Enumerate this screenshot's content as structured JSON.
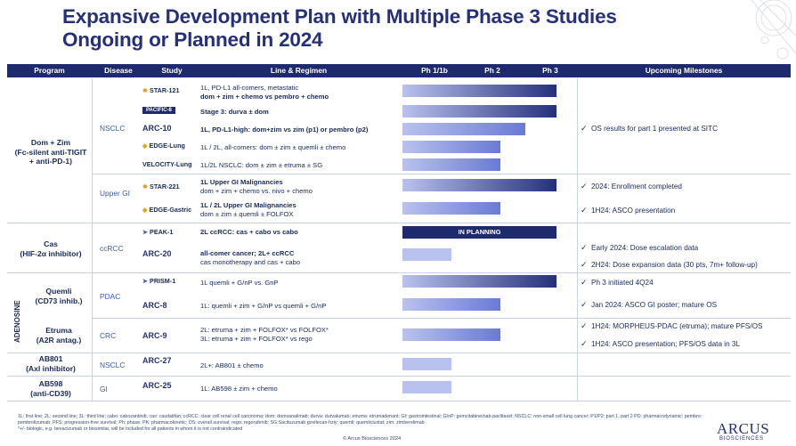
{
  "title": {
    "line1": "Expansive Development Plan with Multiple Phase 3 Studies",
    "line2": "Ongoing or Planned in 2024"
  },
  "header": [
    "Program",
    "Disease",
    "Study",
    "Line & Regimen",
    "Ph 1/1b",
    "Ph 2",
    "Ph 3",
    "Upcoming Milestones"
  ],
  "programs": {
    "domzim": {
      "l1": "Dom + Zim",
      "l2": "(Fc-silent anti-TIGIT",
      "l3": "+ anti-PD-1)"
    },
    "cas": {
      "l1": "Cas",
      "l2": "(HIF-2α inhibitor)"
    },
    "quemli": {
      "l1": "Quemli",
      "l2": "(CD73 inhib.)"
    },
    "etruma": {
      "l1": "Etruma",
      "l2": "(A2R antag.)"
    },
    "ab801": {
      "l1": "AB801",
      "l2": "(Axl inhibitor)"
    },
    "ab598": {
      "l1": "AB598",
      "l2": "(anti-CD39)"
    },
    "adenosine": "ADENOSINE"
  },
  "diseases": {
    "nsclc": "NSCLC",
    "uppergi": "Upper GI",
    "ccrcc": "ccRCC",
    "pdac": "PDAC",
    "crc": "CRC",
    "nsclc2": "NSCLC",
    "gi": "GI"
  },
  "studies": {
    "s1": "STAR-121",
    "s2": "PACIFIC-8",
    "s3": "ARC-10",
    "s4": "EDGE-Lung",
    "s5": "VELOCITY-Lung",
    "s6": "STAR-221",
    "s7": "EDGE-Gastric",
    "s8": "PEAK-1",
    "s9": "ARC-20",
    "s10": "PRISM-1",
    "s11": "ARC-8",
    "s12": "ARC-9",
    "s13": "ARC-27",
    "s14": "ARC-25"
  },
  "regimens": {
    "r1a": "1L, PD-L1 all-comers, metastatic",
    "r1b": "dom + zim + chemo vs pembro + chemo",
    "r2": "Stage 3: durva ± dom",
    "r3": "1L, PD-L1-high: dom+zim vs zim (p1) or pembro (p2)",
    "r4": "1L / 2L, all-comers: dom ± zim ± quemli ± chemo",
    "r5": "1L/2L NSCLC: dom ± zim  ± etruma ± SG",
    "r6a": "1L Upper GI Malignancies",
    "r6b": "dom + zim + chemo vs. nivo + chemo",
    "r7a": "1L / 2L Upper GI Malignancies",
    "r7b": "dom ± zim ± quemli ± FOLFOX",
    "r8": "2L ccRCC: cas + cabo vs cabo",
    "r9a": "all-comer cancer; 2L+ ccRCC",
    "r9b": "cas monotherapy and cas + cabo",
    "r10": "1L quemli + G/nP vs. GnP",
    "r11": "1L: quemli + zim + G/nP vs quemli + G/nP",
    "r12a": "2L: etruma + zim + FOLFOX* vs FOLFOX*",
    "r12b": "3L: etruma + zim + FOLFOX* vs rego",
    "r13": "2L+: AB801 ± chemo",
    "r14": "1L: AB598 ± zim + chemo"
  },
  "planning_label": "IN PLANNING",
  "phase_progress": {
    "star121": 3,
    "pacific8": 3,
    "arc10": 2.5,
    "edgelung": 2,
    "velocity": 2,
    "star221": 3,
    "edgegastric": 2,
    "peak1": "planned",
    "arc20": 1,
    "prism1": 3,
    "arc8": 2,
    "arc9": 2,
    "arc27": 1,
    "arc25": 1
  },
  "milestones": {
    "m1": "OS results for part 1 presented at SITC",
    "m2": "2024: Enrollment completed",
    "m3": "1H24: ASCO presentation",
    "m4": "Early 2024: Dose escalation data",
    "m5": "2H24: Dose expansion data (30 pts, 7m+ follow-up)",
    "m6": "Ph 3 initiated 4Q24",
    "m7": "Jan 2024: ASCO GI poster; mature OS",
    "m8": "1H24: MORPHEUS-PDAC (etruma); mature PFS/OS",
    "m9": "1H24: ASCO presentation; PFS/OS data in 3L"
  },
  "check": "✓",
  "footnote1": "1L: first line; 2L: second line; 3L: third line; cabo: cabozantinib; cas: casdatifan; ccRCC: clear cell renal cell carcinoma; dom: domvanalimab; durva: durvalumab; etruma: etrumadenant; GI: gastrointestinal; G/nP: gemcitabine/nab-paclitaxel; NSCLC: non-small cell lung cancer; P1/P2: part 1, part 2 PD: pharmacodynamic; pembro: pembrolizumab; PFS: progression-free survival; Ph: phase; PK: pharmacokinetic; OS: overall survival; rego: regorafenib; SG:Sacituzumab govitecan-hziy; quemli: quemliclustat; zim: zimberelimab",
  "footnote2": "*+/- biologic, e.g. bevacizumab or biosimilar, will be included for all patients in whom it is not contraindicated",
  "copyright": "© Arcus Biosciences 2024",
  "brand": {
    "name": "ARCUS",
    "sub": "BIOSCIENCES"
  },
  "colors": {
    "navy": "#1f2a6e",
    "ph3": "#26307a",
    "ph2": "#6a7ad4",
    "ph1": "#b9c2ee",
    "accent": "#3a5ba8"
  }
}
